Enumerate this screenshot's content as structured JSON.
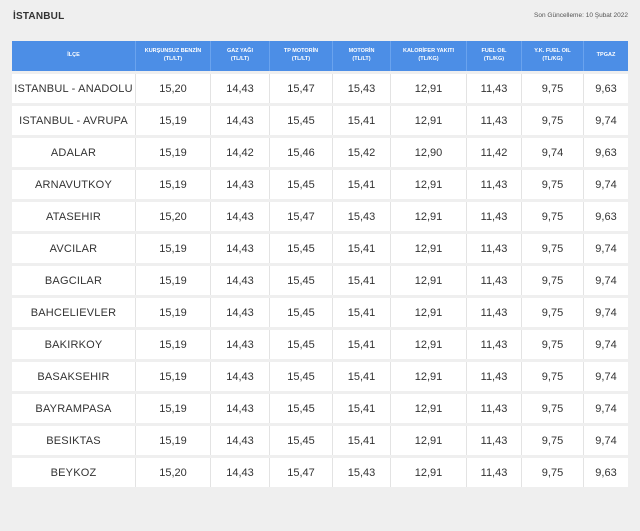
{
  "header": {
    "city": "İSTANBUL",
    "updated": "Son Güncelleme: 10 Şubat 2022"
  },
  "columns": [
    {
      "name": "İLÇE",
      "unit": ""
    },
    {
      "name": "KURŞUNSUZ BENZİN",
      "unit": "(TL/LT)"
    },
    {
      "name": "GAZ YAĞI",
      "unit": "(TL/LT)"
    },
    {
      "name": "TP MOTORİN",
      "unit": "(TL/LT)"
    },
    {
      "name": "MOTORİN",
      "unit": "(TL/LT)"
    },
    {
      "name": "KALORİFER YAKITI",
      "unit": "(TL/KG)"
    },
    {
      "name": "FUEL OIL",
      "unit": "(TL/KG)"
    },
    {
      "name": "Y.K. FUEL OIL",
      "unit": "(TL/KG)"
    },
    {
      "name": "TPGAZ",
      "unit": ""
    }
  ],
  "rows": [
    [
      "ISTANBUL - ANADOLU",
      "15,20",
      "14,43",
      "15,47",
      "15,43",
      "12,91",
      "11,43",
      "9,75",
      "9,63"
    ],
    [
      "ISTANBUL - AVRUPA",
      "15,19",
      "14,43",
      "15,45",
      "15,41",
      "12,91",
      "11,43",
      "9,75",
      "9,74"
    ],
    [
      "ADALAR",
      "15,19",
      "14,42",
      "15,46",
      "15,42",
      "12,90",
      "11,42",
      "9,74",
      "9,63"
    ],
    [
      "ARNAVUTKOY",
      "15,19",
      "14,43",
      "15,45",
      "15,41",
      "12,91",
      "11,43",
      "9,75",
      "9,74"
    ],
    [
      "ATASEHIR",
      "15,20",
      "14,43",
      "15,47",
      "15,43",
      "12,91",
      "11,43",
      "9,75",
      "9,63"
    ],
    [
      "AVCILAR",
      "15,19",
      "14,43",
      "15,45",
      "15,41",
      "12,91",
      "11,43",
      "9,75",
      "9,74"
    ],
    [
      "BAGCILAR",
      "15,19",
      "14,43",
      "15,45",
      "15,41",
      "12,91",
      "11,43",
      "9,75",
      "9,74"
    ],
    [
      "BAHCELIEVLER",
      "15,19",
      "14,43",
      "15,45",
      "15,41",
      "12,91",
      "11,43",
      "9,75",
      "9,74"
    ],
    [
      "BAKIRKOY",
      "15,19",
      "14,43",
      "15,45",
      "15,41",
      "12,91",
      "11,43",
      "9,75",
      "9,74"
    ],
    [
      "BASAKSEHIR",
      "15,19",
      "14,43",
      "15,45",
      "15,41",
      "12,91",
      "11,43",
      "9,75",
      "9,74"
    ],
    [
      "BAYRAMPASA",
      "15,19",
      "14,43",
      "15,45",
      "15,41",
      "12,91",
      "11,43",
      "9,75",
      "9,74"
    ],
    [
      "BESIKTAS",
      "15,19",
      "14,43",
      "15,45",
      "15,41",
      "12,91",
      "11,43",
      "9,75",
      "9,74"
    ],
    [
      "BEYKOZ",
      "15,20",
      "14,43",
      "15,47",
      "15,43",
      "12,91",
      "11,43",
      "9,75",
      "9,63"
    ]
  ],
  "colors": {
    "header_bg": "#4c8ee6",
    "page_bg": "#efefef",
    "row_bg": "#ffffff"
  }
}
